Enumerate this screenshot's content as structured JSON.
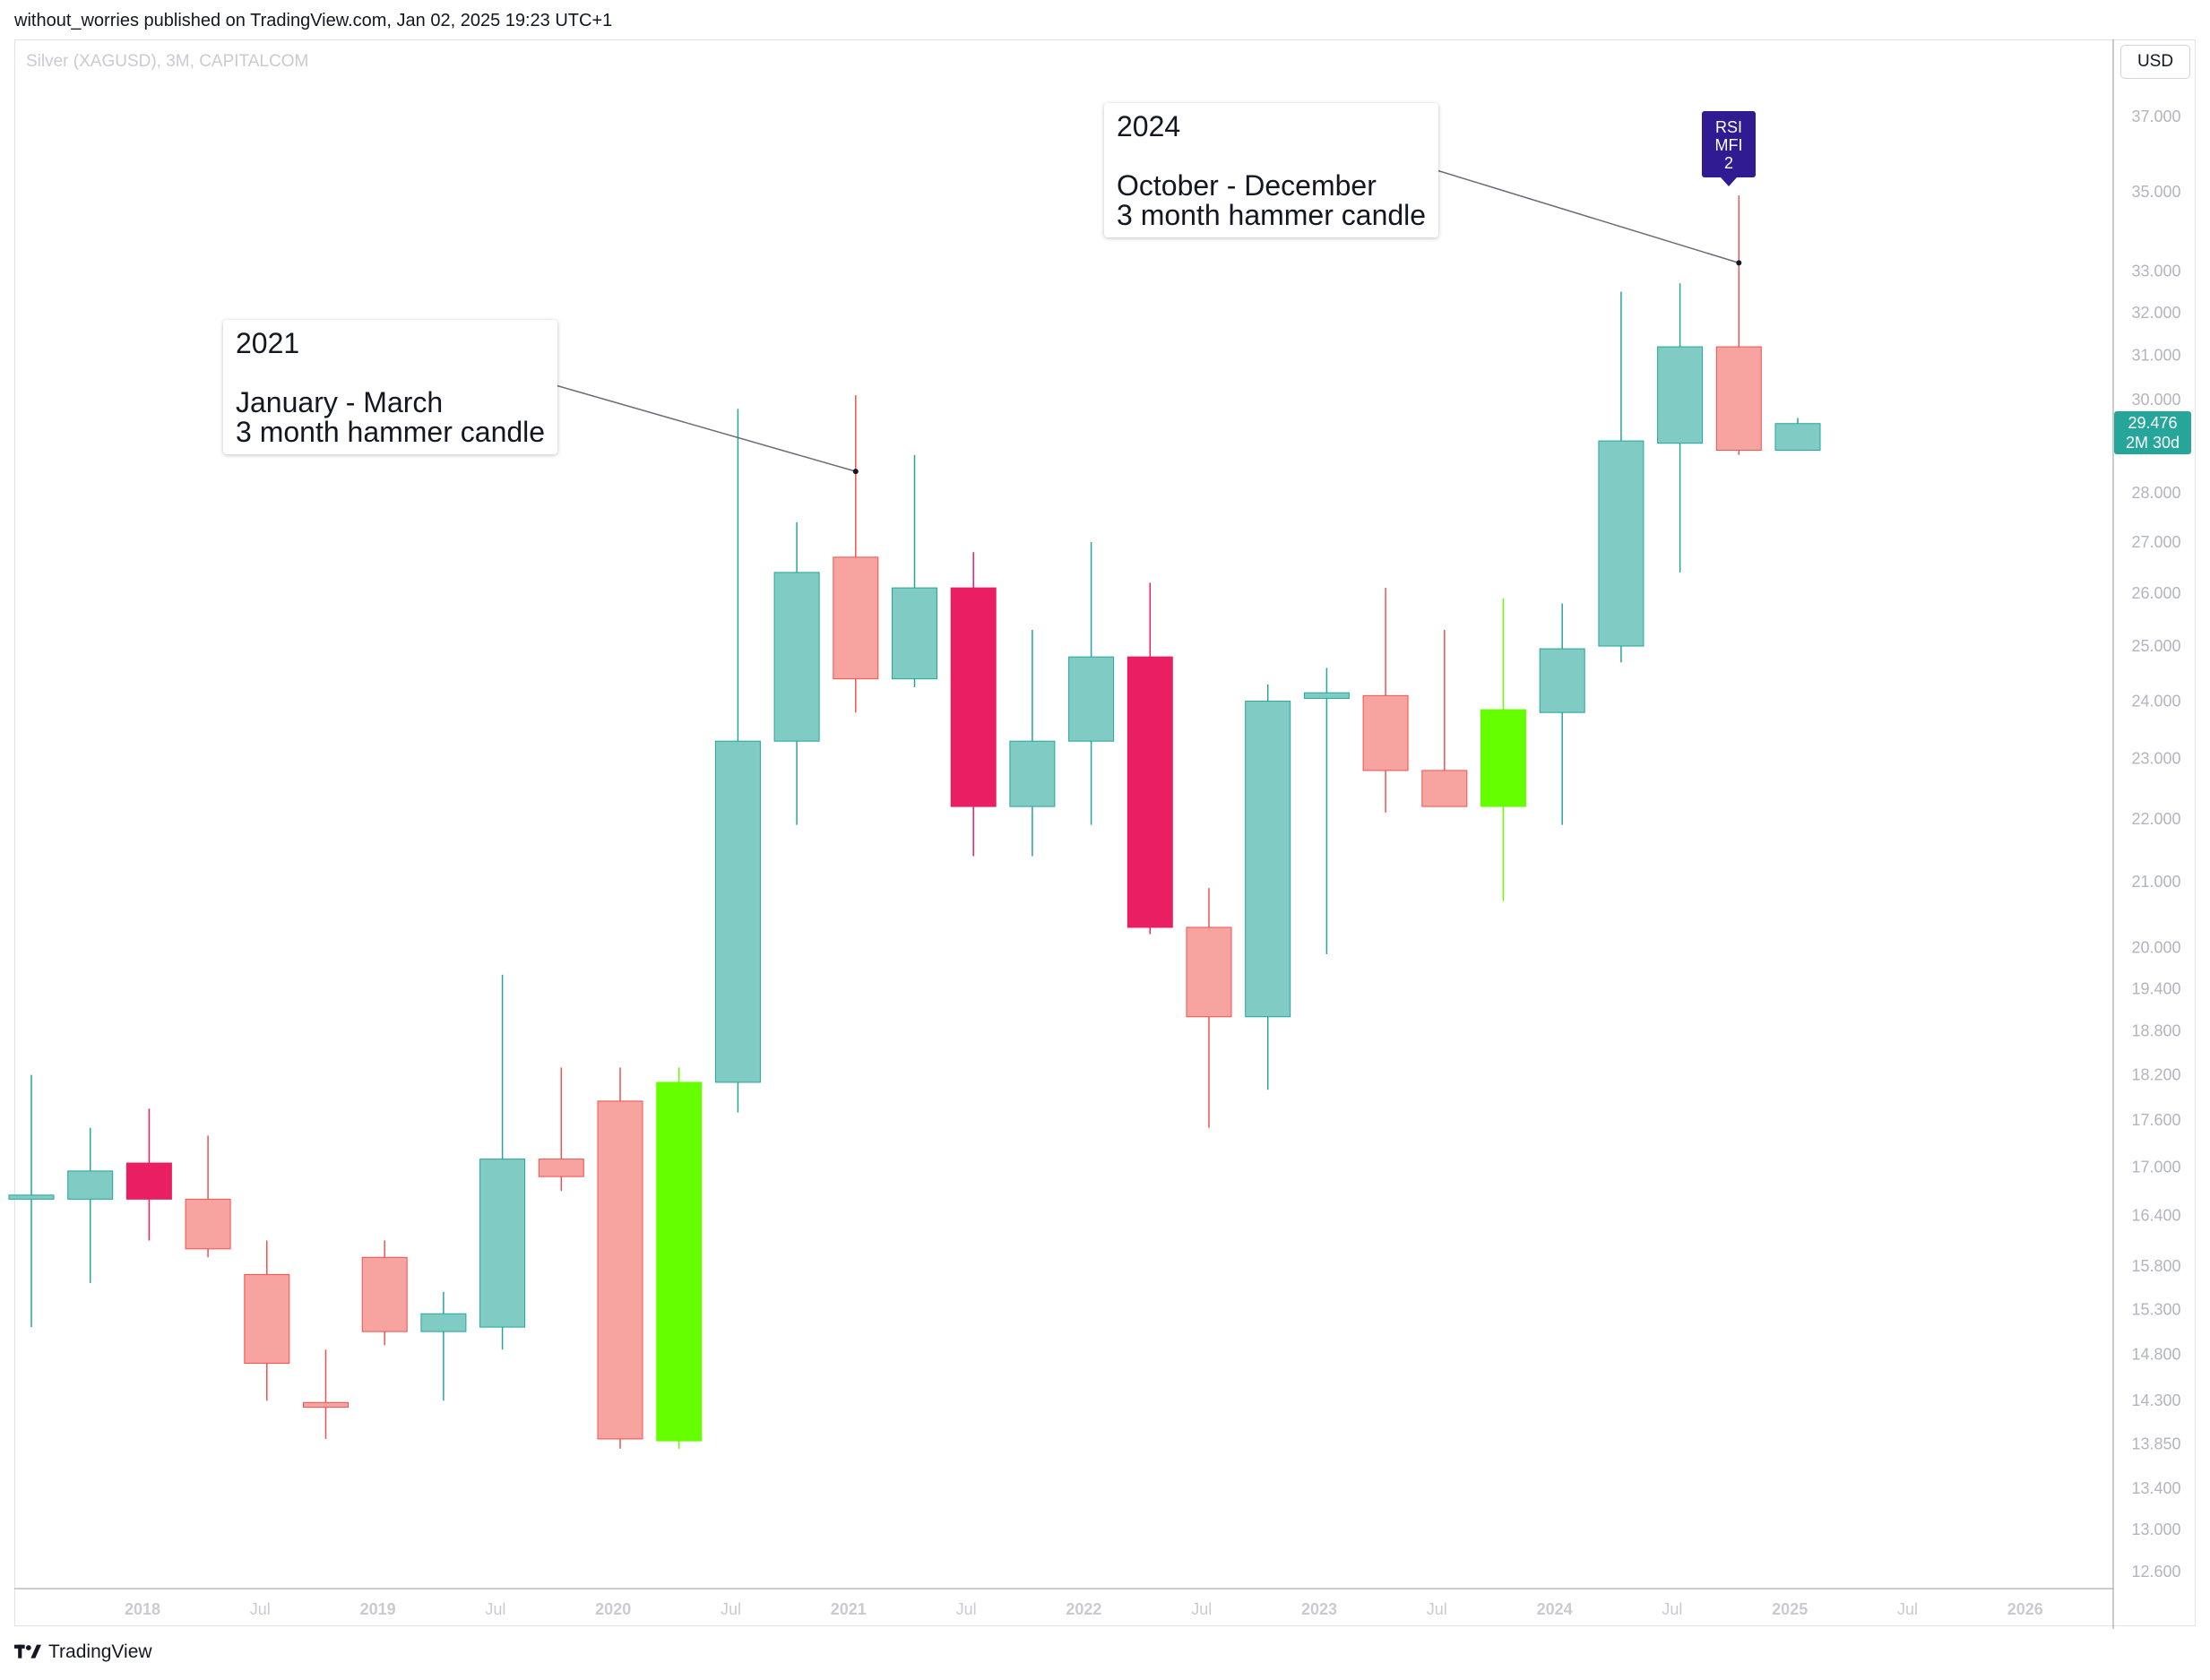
{
  "header": {
    "published_line": "without_worries published on TradingView.com, Jan 02, 2025 19:23 UTC+1"
  },
  "chart_info": {
    "symbol_line": "Silver (XAGUSD), 3M, CAPITALCOM",
    "currency": "USD"
  },
  "footer": {
    "brand": "TradingView"
  },
  "price_tag": {
    "price": "29.476",
    "countdown": "2M 30d",
    "color": "#26a69a"
  },
  "rsi_tag": {
    "lines": [
      "RSI",
      "MFI",
      "2"
    ],
    "color": "#311b92"
  },
  "annotations": [
    {
      "year": "2021",
      "line1": "January - March",
      "line2": "3 month hammer candle"
    },
    {
      "year": "2024",
      "line1": "October - December",
      "line2": "3 month hammer candle"
    }
  ],
  "colors": {
    "up": "#80cbc4",
    "up_border": "#26a69a",
    "down": "#f7a3a0",
    "down_border": "#ef5350",
    "down_strong": "#e91e63",
    "up_strong": "#66ff00"
  },
  "chart_data": {
    "type": "candlestick",
    "title": "Silver (XAGUSD), 3M, CAPITALCOM",
    "y_scale": "log",
    "ylim": [
      12.4,
      38.2
    ],
    "y_ticks": [
      "37.000",
      "35.000",
      "33.000",
      "32.000",
      "31.000",
      "30.000",
      "28.000",
      "27.000",
      "26.000",
      "25.000",
      "24.000",
      "23.000",
      "22.000",
      "21.000",
      "20.000",
      "19.400",
      "18.800",
      "18.200",
      "17.600",
      "17.000",
      "16.400",
      "15.800",
      "15.300",
      "14.800",
      "14.300",
      "13.850",
      "13.400",
      "13.000",
      "12.600"
    ],
    "x_ticks": [
      {
        "label": "2018",
        "year": true
      },
      {
        "label": "Jul",
        "year": false
      },
      {
        "label": "2019",
        "year": true
      },
      {
        "label": "Jul",
        "year": false
      },
      {
        "label": "2020",
        "year": true
      },
      {
        "label": "Jul",
        "year": false
      },
      {
        "label": "2021",
        "year": true
      },
      {
        "label": "Jul",
        "year": false
      },
      {
        "label": "2022",
        "year": true
      },
      {
        "label": "Jul",
        "year": false
      },
      {
        "label": "2023",
        "year": true
      },
      {
        "label": "Jul",
        "year": false
      },
      {
        "label": "2024",
        "year": true
      },
      {
        "label": "Jul",
        "year": false
      },
      {
        "label": "2025",
        "year": true
      },
      {
        "label": "Jul",
        "year": false
      },
      {
        "label": "2026",
        "year": true
      }
    ],
    "candles": [
      {
        "period": "2017 Q4",
        "open": 16.6,
        "high": 18.2,
        "low": 15.1,
        "close": 16.65,
        "style": "up"
      },
      {
        "period": "2018 Q1",
        "open": 16.6,
        "high": 17.5,
        "low": 15.6,
        "close": 16.95,
        "style": "up"
      },
      {
        "period": "2018 Q2",
        "open": 17.05,
        "high": 17.75,
        "low": 16.1,
        "close": 16.6,
        "style": "down_strong"
      },
      {
        "period": "2018 Q3",
        "open": 16.6,
        "high": 17.4,
        "low": 15.9,
        "close": 16.0,
        "style": "down"
      },
      {
        "period": "2018 Q4",
        "open": 15.7,
        "high": 16.1,
        "low": 14.3,
        "close": 14.7,
        "style": "down"
      },
      {
        "period": "2019 Q1",
        "open": 14.28,
        "high": 14.85,
        "low": 13.9,
        "close": 14.23,
        "style": "down"
      },
      {
        "period": "2019 Q2",
        "open": 15.9,
        "high": 16.1,
        "low": 14.9,
        "close": 15.05,
        "style": "down"
      },
      {
        "period": "2019 Q3",
        "open": 15.05,
        "high": 15.5,
        "low": 14.3,
        "close": 15.25,
        "style": "up"
      },
      {
        "period": "2019 Q4",
        "open": 15.1,
        "high": 19.6,
        "low": 14.85,
        "close": 17.1,
        "style": "up"
      },
      {
        "period": "2020 Q1",
        "open": 17.1,
        "high": 18.3,
        "low": 16.7,
        "close": 16.88,
        "style": "down"
      },
      {
        "period": "2020 Q2",
        "open": 17.85,
        "high": 18.3,
        "low": 13.8,
        "close": 13.9,
        "style": "down"
      },
      {
        "period": "2020 Q3",
        "open": 13.88,
        "high": 18.3,
        "low": 13.8,
        "close": 18.1,
        "style": "up_strong"
      },
      {
        "period": "2020 Q4",
        "open": 18.1,
        "high": 29.8,
        "low": 17.7,
        "close": 23.3,
        "style": "up"
      },
      {
        "period": "2021 Q1",
        "open": 23.3,
        "high": 27.4,
        "low": 21.9,
        "close": 26.4,
        "style": "up"
      },
      {
        "period": "2021 Q2",
        "open": 26.7,
        "high": 30.1,
        "low": 23.8,
        "close": 24.4,
        "style": "down"
      },
      {
        "period": "2021 Q3",
        "open": 24.4,
        "high": 28.8,
        "low": 24.25,
        "close": 26.1,
        "style": "up"
      },
      {
        "period": "2021 Q4",
        "open": 26.1,
        "high": 26.8,
        "low": 21.4,
        "close": 22.2,
        "style": "down_strong"
      },
      {
        "period": "2022 Q1",
        "open": 22.2,
        "high": 25.3,
        "low": 21.4,
        "close": 23.3,
        "style": "up"
      },
      {
        "period": "2022 Q2",
        "open": 23.3,
        "high": 27.0,
        "low": 21.9,
        "close": 24.8,
        "style": "up"
      },
      {
        "period": "2022 Q3",
        "open": 24.8,
        "high": 26.2,
        "low": 20.2,
        "close": 20.3,
        "style": "down_strong"
      },
      {
        "period": "2022 Q4",
        "open": 20.3,
        "high": 20.9,
        "low": 17.5,
        "close": 19.0,
        "style": "down"
      },
      {
        "period": "2023 Q1",
        "open": 19.0,
        "high": 24.3,
        "low": 18.0,
        "close": 24.0,
        "style": "up"
      },
      {
        "period": "2023 Q2",
        "open": 24.05,
        "high": 24.6,
        "low": 19.9,
        "close": 24.15,
        "style": "up"
      },
      {
        "period": "2023 Q3",
        "open": 24.1,
        "high": 26.1,
        "low": 22.1,
        "close": 22.8,
        "style": "down"
      },
      {
        "period": "2023 Q4",
        "open": 22.8,
        "high": 25.3,
        "low": 22.2,
        "close": 22.2,
        "style": "down"
      },
      {
        "period": "2024 Q1",
        "open": 22.2,
        "high": 25.9,
        "low": 20.7,
        "close": 23.85,
        "style": "up_strong"
      },
      {
        "period": "2024 Q2",
        "open": 23.8,
        "high": 25.8,
        "low": 21.9,
        "close": 24.95,
        "style": "up"
      },
      {
        "period": "2024 Q3",
        "open": 25.0,
        "high": 32.5,
        "low": 24.7,
        "close": 29.1,
        "style": "up"
      },
      {
        "period": "2024 Q4",
        "open": 29.05,
        "high": 32.7,
        "low": 26.4,
        "close": 31.2,
        "style": "up"
      },
      {
        "period": "2025 Q1",
        "open": 31.2,
        "high": 34.9,
        "low": 28.8,
        "close": 28.9,
        "style": "down"
      },
      {
        "period": "2025 Q2",
        "open": 28.9,
        "high": 29.6,
        "low": 28.9,
        "close": 29.476,
        "style": "up"
      }
    ]
  }
}
